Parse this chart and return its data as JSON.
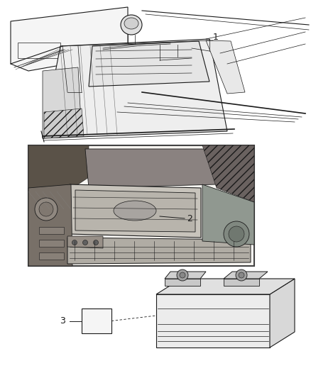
{
  "background_color": "#ffffff",
  "line_color": "#1a1a1a",
  "label1_text": "1",
  "label2_text": "2",
  "label3_text": "3",
  "fig_width": 4.38,
  "fig_height": 5.33,
  "dpi": 100
}
